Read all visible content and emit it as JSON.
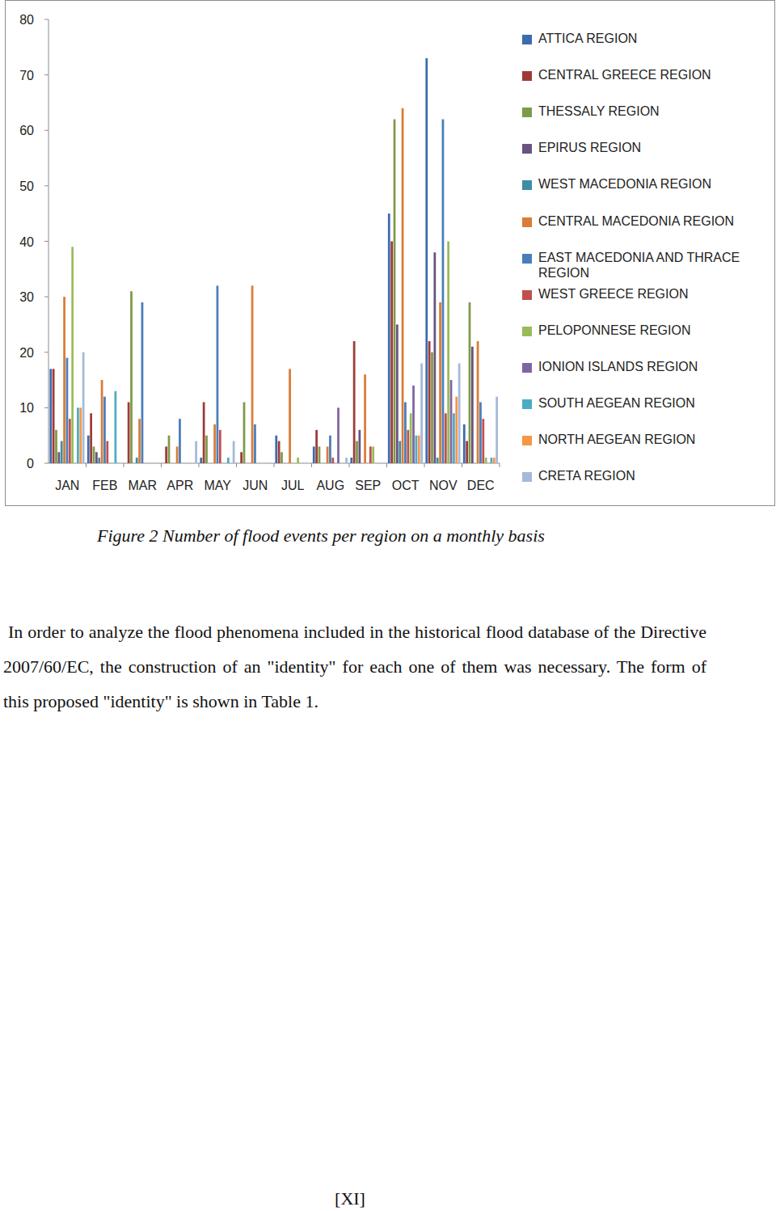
{
  "chart_data": {
    "type": "bar",
    "categories": [
      "JAN",
      "FEB",
      "MAR",
      "APR",
      "MAY",
      "JUN",
      "JUL",
      "AUG",
      "SEP",
      "OCT",
      "NOV",
      "DEC"
    ],
    "series": [
      {
        "name": "ATTICA REGION",
        "color": "#3c6bae",
        "values": [
          17,
          5,
          0,
          0,
          1,
          0,
          5,
          3,
          1,
          45,
          73,
          7
        ]
      },
      {
        "name": "CENTRAL GREECE REGION",
        "color": "#9e3b38",
        "values": [
          17,
          9,
          11,
          3,
          11,
          2,
          4,
          6,
          22,
          40,
          22,
          4
        ]
      },
      {
        "name": "THESSALY REGION",
        "color": "#7f9a48",
        "values": [
          6,
          3,
          31,
          5,
          5,
          11,
          2,
          3,
          4,
          62,
          20,
          29
        ]
      },
      {
        "name": "EPIRUS REGION",
        "color": "#69537f",
        "values": [
          2,
          2,
          0,
          0,
          0,
          0,
          0,
          0,
          6,
          25,
          38,
          21
        ]
      },
      {
        "name": "WEST MACEDONIA REGION",
        "color": "#3d8ea5",
        "values": [
          4,
          1,
          1,
          0,
          0,
          0,
          0,
          0,
          0,
          4,
          1,
          0
        ]
      },
      {
        "name": "CENTRAL MACEDONIA REGION",
        "color": "#d87d37",
        "values": [
          30,
          15,
          8,
          3,
          7,
          32,
          17,
          3,
          16,
          64,
          29,
          22
        ]
      },
      {
        "name": "EAST MACEDONIA AND THRACE REGION",
        "color": "#4a7ebb",
        "values": [
          19,
          12,
          29,
          8,
          32,
          7,
          0,
          5,
          0,
          11,
          62,
          11
        ]
      },
      {
        "name": "WEST GREECE REGION",
        "color": "#c0504d",
        "values": [
          8,
          4,
          0,
          0,
          6,
          0,
          0,
          1,
          3,
          6,
          9,
          8
        ]
      },
      {
        "name": "PELOPONNESE REGION",
        "color": "#9bbb59",
        "values": [
          39,
          0,
          0,
          0,
          0,
          0,
          1,
          0,
          3,
          9,
          40,
          1
        ]
      },
      {
        "name": "IONION ISLANDS REGION",
        "color": "#8064a2",
        "values": [
          0,
          0,
          0,
          0,
          0,
          0,
          0,
          10,
          0,
          14,
          15,
          0
        ]
      },
      {
        "name": "SOUTH AEGEAN REGION",
        "color": "#4bacc6",
        "values": [
          10,
          13,
          0,
          0,
          1,
          0,
          0,
          0,
          0,
          5,
          9,
          1
        ]
      },
      {
        "name": "NORTH AEGEAN REGION",
        "color": "#f79646",
        "values": [
          10,
          0,
          0,
          0,
          0,
          0,
          0,
          0,
          0,
          5,
          12,
          1
        ]
      },
      {
        "name": "CRETA REGION",
        "color": "#a5b9d9",
        "values": [
          20,
          0,
          0,
          4,
          4,
          0,
          0,
          1,
          0,
          18,
          18,
          12
        ]
      }
    ],
    "ylim": [
      0,
      80
    ],
    "yticks": [
      0,
      10,
      20,
      30,
      40,
      50,
      60,
      70,
      80
    ],
    "grid": false,
    "legend": "right"
  },
  "document": {
    "caption": "Figure 2 Number of flood events per region on a monthly basis",
    "paragraph": "In order to analyze the flood phenomena included in the historical flood database of the Directive 2007/60/EC, the construction of an \"identity\" for each one of them was necessary. The form of this proposed \"identity\" is shown in Table 1.",
    "page_number": "[XI]"
  }
}
